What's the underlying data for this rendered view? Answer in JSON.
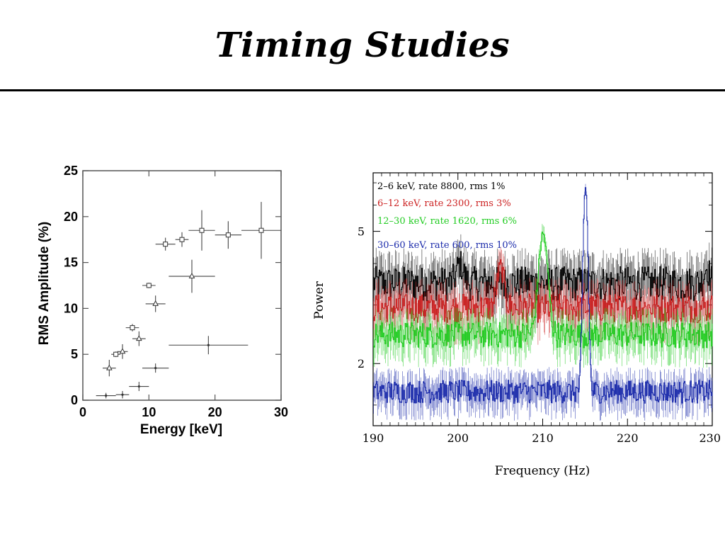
{
  "slide": {
    "title": "Timing  Studies"
  },
  "chart_data": [
    {
      "type": "scatter",
      "title": "",
      "xlabel": "Energy [keV]",
      "ylabel": "RMS Amplitude (%)",
      "xlim": [
        0,
        30
      ],
      "ylim": [
        0,
        25
      ],
      "xticks": [
        0,
        10,
        20,
        30
      ],
      "yticks": [
        0,
        5,
        10,
        15,
        20,
        25
      ],
      "grid": false,
      "series": [
        {
          "marker": "square",
          "points": [
            {
              "x": 5,
              "xerr": 0.7,
              "y": 5.0,
              "yerr": 0.3
            },
            {
              "x": 7.5,
              "xerr": 1.0,
              "y": 7.9,
              "yerr": 0.4
            },
            {
              "x": 10,
              "xerr": 1.0,
              "y": 12.5,
              "yerr": 0.3
            },
            {
              "x": 12.5,
              "xerr": 1.5,
              "y": 17.0,
              "yerr": 0.7
            },
            {
              "x": 15,
              "xerr": 1.0,
              "y": 17.5,
              "yerr": 0.8
            },
            {
              "x": 18,
              "xerr": 2.0,
              "y": 18.5,
              "yerr": 2.2
            },
            {
              "x": 22,
              "xerr": 2.0,
              "y": 18.0,
              "yerr": 1.5
            },
            {
              "x": 27,
              "xerr": 3.0,
              "y": 18.5,
              "yerr": 3.1
            }
          ]
        },
        {
          "marker": "triangle",
          "points": [
            {
              "x": 4,
              "xerr": 1.0,
              "y": 3.5,
              "yerr": 0.9
            },
            {
              "x": 6,
              "xerr": 0.8,
              "y": 5.3,
              "yerr": 0.8
            },
            {
              "x": 8.5,
              "xerr": 1.0,
              "y": 6.7,
              "yerr": 0.8
            },
            {
              "x": 11,
              "xerr": 1.5,
              "y": 10.5,
              "yerr": 0.9
            },
            {
              "x": 16.5,
              "xerr": 3.5,
              "y": 13.5,
              "yerr": 1.8
            }
          ]
        },
        {
          "marker": "plus",
          "points": [
            {
              "x": 3.5,
              "xerr": 1.5,
              "y": 0.5,
              "yerr": 0.3
            },
            {
              "x": 6,
              "xerr": 1.0,
              "y": 0.6,
              "yerr": 0.4
            },
            {
              "x": 8.5,
              "xerr": 1.5,
              "y": 1.5,
              "yerr": 0.5
            },
            {
              "x": 11,
              "xerr": 2.0,
              "y": 3.5,
              "yerr": 0.5
            },
            {
              "x": 19,
              "xerr": 6.0,
              "y": 6.0,
              "yerr": 1.0
            }
          ]
        }
      ]
    },
    {
      "type": "line",
      "title": "",
      "xlabel": "Frequency (Hz)",
      "ylabel": "Power",
      "xlim": [
        190,
        230
      ],
      "ylim": [
        1.3,
        7.5
      ],
      "yscale": "log",
      "xticks": [
        190,
        200,
        210,
        220,
        230
      ],
      "yticks": [
        2,
        5
      ],
      "grid": false,
      "legend": "top-left",
      "series": [
        {
          "name": "2–6 keV, rate 8800, rms 1%",
          "color": "#000000",
          "baseline": 3.5,
          "noise": 0.12,
          "features": [
            {
              "x": 200.2,
              "value": 4.0,
              "width": 0.4
            },
            {
              "x": 229.3,
              "value": 3.9,
              "width": 0.3
            }
          ]
        },
        {
          "name": "6–12 keV, rate 2300, rms 3%",
          "color": "#cc2222",
          "baseline": 2.95,
          "noise": 0.1,
          "features": [
            {
              "x": 205.0,
              "value": 3.9,
              "width": 0.4
            }
          ]
        },
        {
          "name": "12–30 keV, rate 1620, rms 6%",
          "color": "#22cc22",
          "baseline": 2.45,
          "noise": 0.09,
          "features": [
            {
              "x": 210.0,
              "value": 4.9,
              "width": 0.5
            }
          ]
        },
        {
          "name": "30–60 keV, rate 600, rms 10%",
          "color": "#1a2aaa",
          "baseline": 1.65,
          "noise": 0.08,
          "features": [
            {
              "x": 215.0,
              "value": 6.8,
              "width": 0.25
            }
          ]
        }
      ]
    }
  ]
}
